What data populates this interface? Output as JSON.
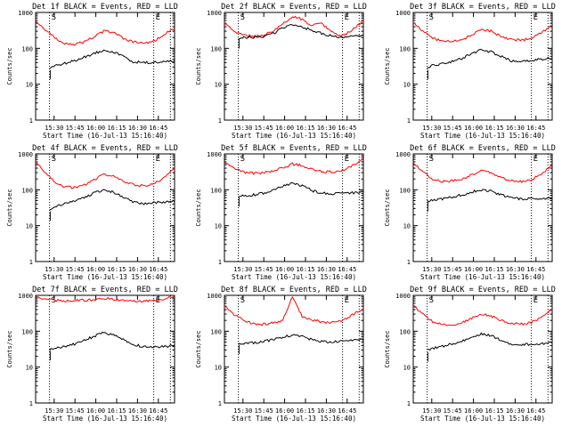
{
  "colors": {
    "events": "#000000",
    "lld": "#ff0000",
    "axis": "#000000",
    "background": "#ffffff"
  },
  "common": {
    "ylabel": "Counts/sec",
    "xlabel": "Start Time (16-Jul-13 15:16:40)",
    "xticks": [
      "15:30",
      "15:45",
      "16:00",
      "16:15",
      "16:30",
      "16:45"
    ],
    "yticks": [
      "1",
      "10",
      "100",
      "1000"
    ],
    "scale": "log",
    "ylim": [
      1,
      1000
    ]
  },
  "chart_data": [
    {
      "type": "line",
      "title": "Det 1f BLACK = Events, RED = LLD",
      "markers": [
        "S",
        "E"
      ],
      "series": [
        {
          "color": "red",
          "values": [
            570,
            330,
            190,
            140,
            130,
            150,
            210,
            300,
            280,
            190,
            150,
            140,
            150,
            220,
            380
          ]
        },
        {
          "color": "black",
          "values": [
            null,
            25,
            33,
            38,
            45,
            57,
            72,
            90,
            80,
            60,
            42,
            40,
            40,
            42,
            45
          ]
        }
      ]
    },
    {
      "type": "line",
      "title": "Det 2f BLACK = Events, RED = LLD",
      "markers": [
        "S",
        "E"
      ],
      "series": [
        {
          "color": "red",
          "values": [
            530,
            290,
            230,
            220,
            230,
            300,
            480,
            750,
            650,
            420,
            500,
            280,
            220,
            300,
            600
          ]
        },
        {
          "color": "black",
          "values": [
            null,
            180,
            200,
            200,
            210,
            260,
            370,
            470,
            400,
            310,
            260,
            220,
            200,
            210,
            230
          ]
        }
      ]
    },
    {
      "type": "line",
      "title": "Det 3f BLACK = Events, RED = LLD",
      "markers": [
        "S",
        "E"
      ],
      "series": [
        {
          "color": "red",
          "values": [
            520,
            300,
            190,
            160,
            155,
            175,
            230,
            330,
            300,
            220,
            180,
            170,
            180,
            250,
            420
          ]
        },
        {
          "color": "black",
          "values": [
            null,
            25,
            33,
            38,
            43,
            52,
            70,
            90,
            80,
            60,
            45,
            42,
            45,
            50,
            55
          ]
        }
      ]
    },
    {
      "type": "line",
      "title": "Det 4f BLACK = Events, RED = LLD",
      "markers": [
        "S",
        "E"
      ],
      "series": [
        {
          "color": "red",
          "values": [
            620,
            300,
            160,
            120,
            115,
            135,
            190,
            270,
            240,
            170,
            140,
            130,
            140,
            200,
            380
          ]
        },
        {
          "color": "black",
          "values": [
            null,
            25,
            35,
            40,
            50,
            60,
            80,
            100,
            85,
            62,
            45,
            42,
            43,
            45,
            48
          ]
        }
      ]
    },
    {
      "type": "line",
      "title": "Det 5f BLACK = Events, RED = LLD",
      "markers": [
        "S",
        "E"
      ],
      "series": [
        {
          "color": "red",
          "values": [
            580,
            400,
            310,
            290,
            300,
            330,
            420,
            520,
            470,
            370,
            320,
            310,
            330,
            430,
            720
          ]
        },
        {
          "color": "black",
          "values": [
            null,
            62,
            68,
            72,
            80,
            95,
            125,
            150,
            130,
            95,
            80,
            78,
            80,
            82,
            85
          ]
        }
      ]
    },
    {
      "type": "line",
      "title": "Det 6f BLACK = Events, RED = LLD",
      "markers": [
        "S",
        "E"
      ],
      "series": [
        {
          "color": "red",
          "values": [
            560,
            320,
            190,
            170,
            175,
            200,
            260,
            340,
            300,
            220,
            180,
            170,
            180,
            260,
            460
          ]
        },
        {
          "color": "black",
          "values": [
            null,
            45,
            52,
            56,
            62,
            72,
            88,
            100,
            90,
            72,
            60,
            56,
            56,
            58,
            60
          ]
        }
      ]
    },
    {
      "type": "line",
      "title": "Det 7f BLACK = Events, RED = LLD",
      "markers": [
        "S",
        "E"
      ],
      "series": [
        {
          "color": "red",
          "values": [
            900,
            790,
            730,
            700,
            710,
            730,
            760,
            820,
            790,
            740,
            710,
            700,
            720,
            780,
            920
          ]
        },
        {
          "color": "black",
          "values": [
            null,
            28,
            33,
            38,
            44,
            55,
            72,
            90,
            80,
            60,
            42,
            38,
            36,
            37,
            40
          ]
        }
      ]
    },
    {
      "type": "line",
      "title": "Det 8f BLACK = Events, RED = LLD",
      "markers": [
        "S",
        "E"
      ],
      "series": [
        {
          "color": "red",
          "values": [
            500,
            290,
            200,
            160,
            155,
            170,
            200,
            950,
            260,
            210,
            180,
            170,
            190,
            270,
            420
          ]
        },
        {
          "color": "black",
          "values": [
            null,
            42,
            46,
            48,
            52,
            58,
            66,
            80,
            70,
            58,
            52,
            50,
            52,
            55,
            58
          ]
        }
      ]
    },
    {
      "type": "line",
      "title": "Det 9f BLACK = Events, RED = LLD",
      "markers": [
        "S",
        "E"
      ],
      "series": [
        {
          "color": "red",
          "values": [
            520,
            300,
            180,
            150,
            150,
            170,
            230,
            300,
            270,
            200,
            165,
            160,
            170,
            230,
            420
          ]
        },
        {
          "color": "black",
          "values": [
            null,
            26,
            33,
            38,
            44,
            52,
            68,
            85,
            75,
            57,
            45,
            42,
            43,
            45,
            48
          ]
        }
      ]
    }
  ]
}
